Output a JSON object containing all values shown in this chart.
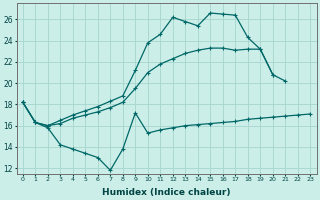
{
  "xlabel": "Humidex (Indice chaleur)",
  "bg_color": "#cceee8",
  "grid_color": "#aad8d0",
  "line_color": "#006868",
  "xlim": [
    -0.5,
    23.5
  ],
  "ylim": [
    11.5,
    27.5
  ],
  "xticks": [
    0,
    1,
    2,
    3,
    4,
    5,
    6,
    7,
    8,
    9,
    10,
    11,
    12,
    13,
    14,
    15,
    16,
    17,
    18,
    19,
    20,
    21,
    22,
    23
  ],
  "yticks": [
    12,
    14,
    16,
    18,
    20,
    22,
    24,
    26
  ],
  "line1_x": [
    0,
    1,
    2,
    3,
    4,
    5,
    6,
    7,
    8,
    9,
    10,
    11,
    12,
    13,
    14,
    15,
    16,
    17,
    18,
    19,
    20,
    21
  ],
  "line1_y": [
    18.2,
    16.3,
    16.0,
    16.5,
    17.0,
    17.4,
    17.8,
    18.3,
    18.8,
    21.2,
    23.8,
    24.6,
    26.2,
    25.8,
    25.4,
    26.6,
    26.5,
    26.4,
    24.3,
    23.2,
    20.8,
    20.2
  ],
  "line2_x": [
    0,
    1,
    2,
    3,
    4,
    5,
    6,
    7,
    8,
    9,
    10,
    11,
    12,
    13,
    14,
    15,
    16,
    17,
    18,
    19,
    20
  ],
  "line2_y": [
    18.2,
    16.3,
    16.0,
    16.2,
    16.7,
    17.0,
    17.3,
    17.7,
    18.2,
    19.5,
    21.0,
    21.8,
    22.3,
    22.8,
    23.1,
    23.3,
    23.3,
    23.1,
    23.2,
    23.2,
    20.8
  ],
  "line3_x": [
    0,
    1,
    2,
    3,
    4,
    5,
    6,
    7,
    8,
    9,
    10,
    11,
    12,
    13,
    14,
    15,
    16,
    17,
    18,
    19,
    20,
    21,
    22,
    23
  ],
  "line3_y": [
    18.2,
    16.3,
    15.8,
    14.2,
    13.8,
    13.4,
    13.0,
    11.8,
    13.8,
    17.2,
    15.3,
    15.6,
    15.8,
    16.0,
    16.1,
    16.2,
    16.3,
    16.4,
    16.6,
    16.7,
    16.8,
    16.9,
    17.0,
    17.1
  ]
}
